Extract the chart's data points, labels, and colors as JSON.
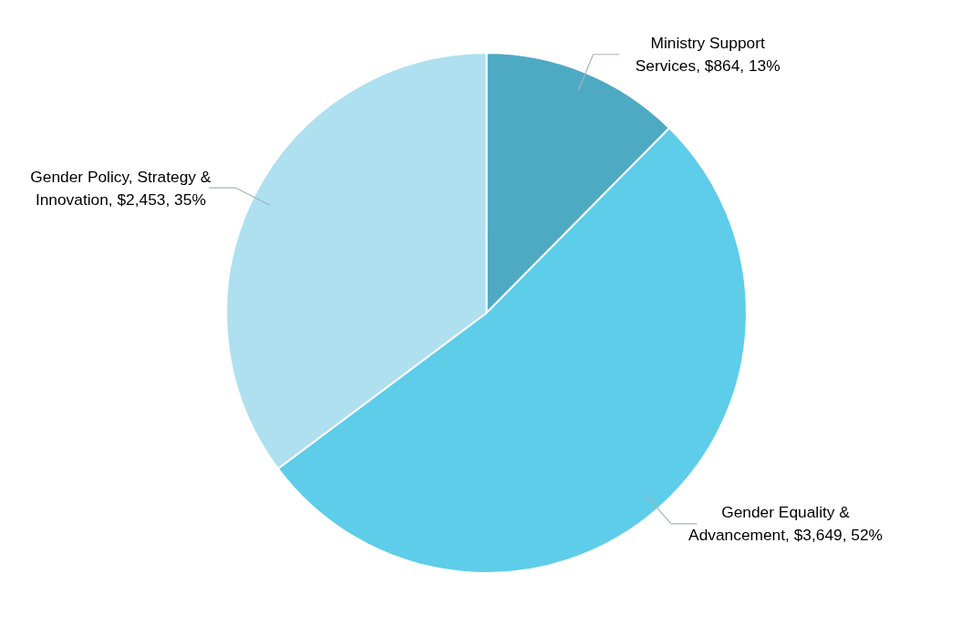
{
  "chart_data": {
    "type": "pie",
    "categories": [
      "Ministry Support Services",
      "Gender Equality & Advancement",
      "Gender Policy, Strategy & Innovation"
    ],
    "values": [
      864,
      3649,
      2453
    ],
    "colors": [
      "#4eaac3",
      "#5ecde9",
      "#aee0f0"
    ],
    "value_labels": [
      "$864, 13%",
      "$3,649, 52%",
      "$2,453, 35%"
    ]
  }
}
